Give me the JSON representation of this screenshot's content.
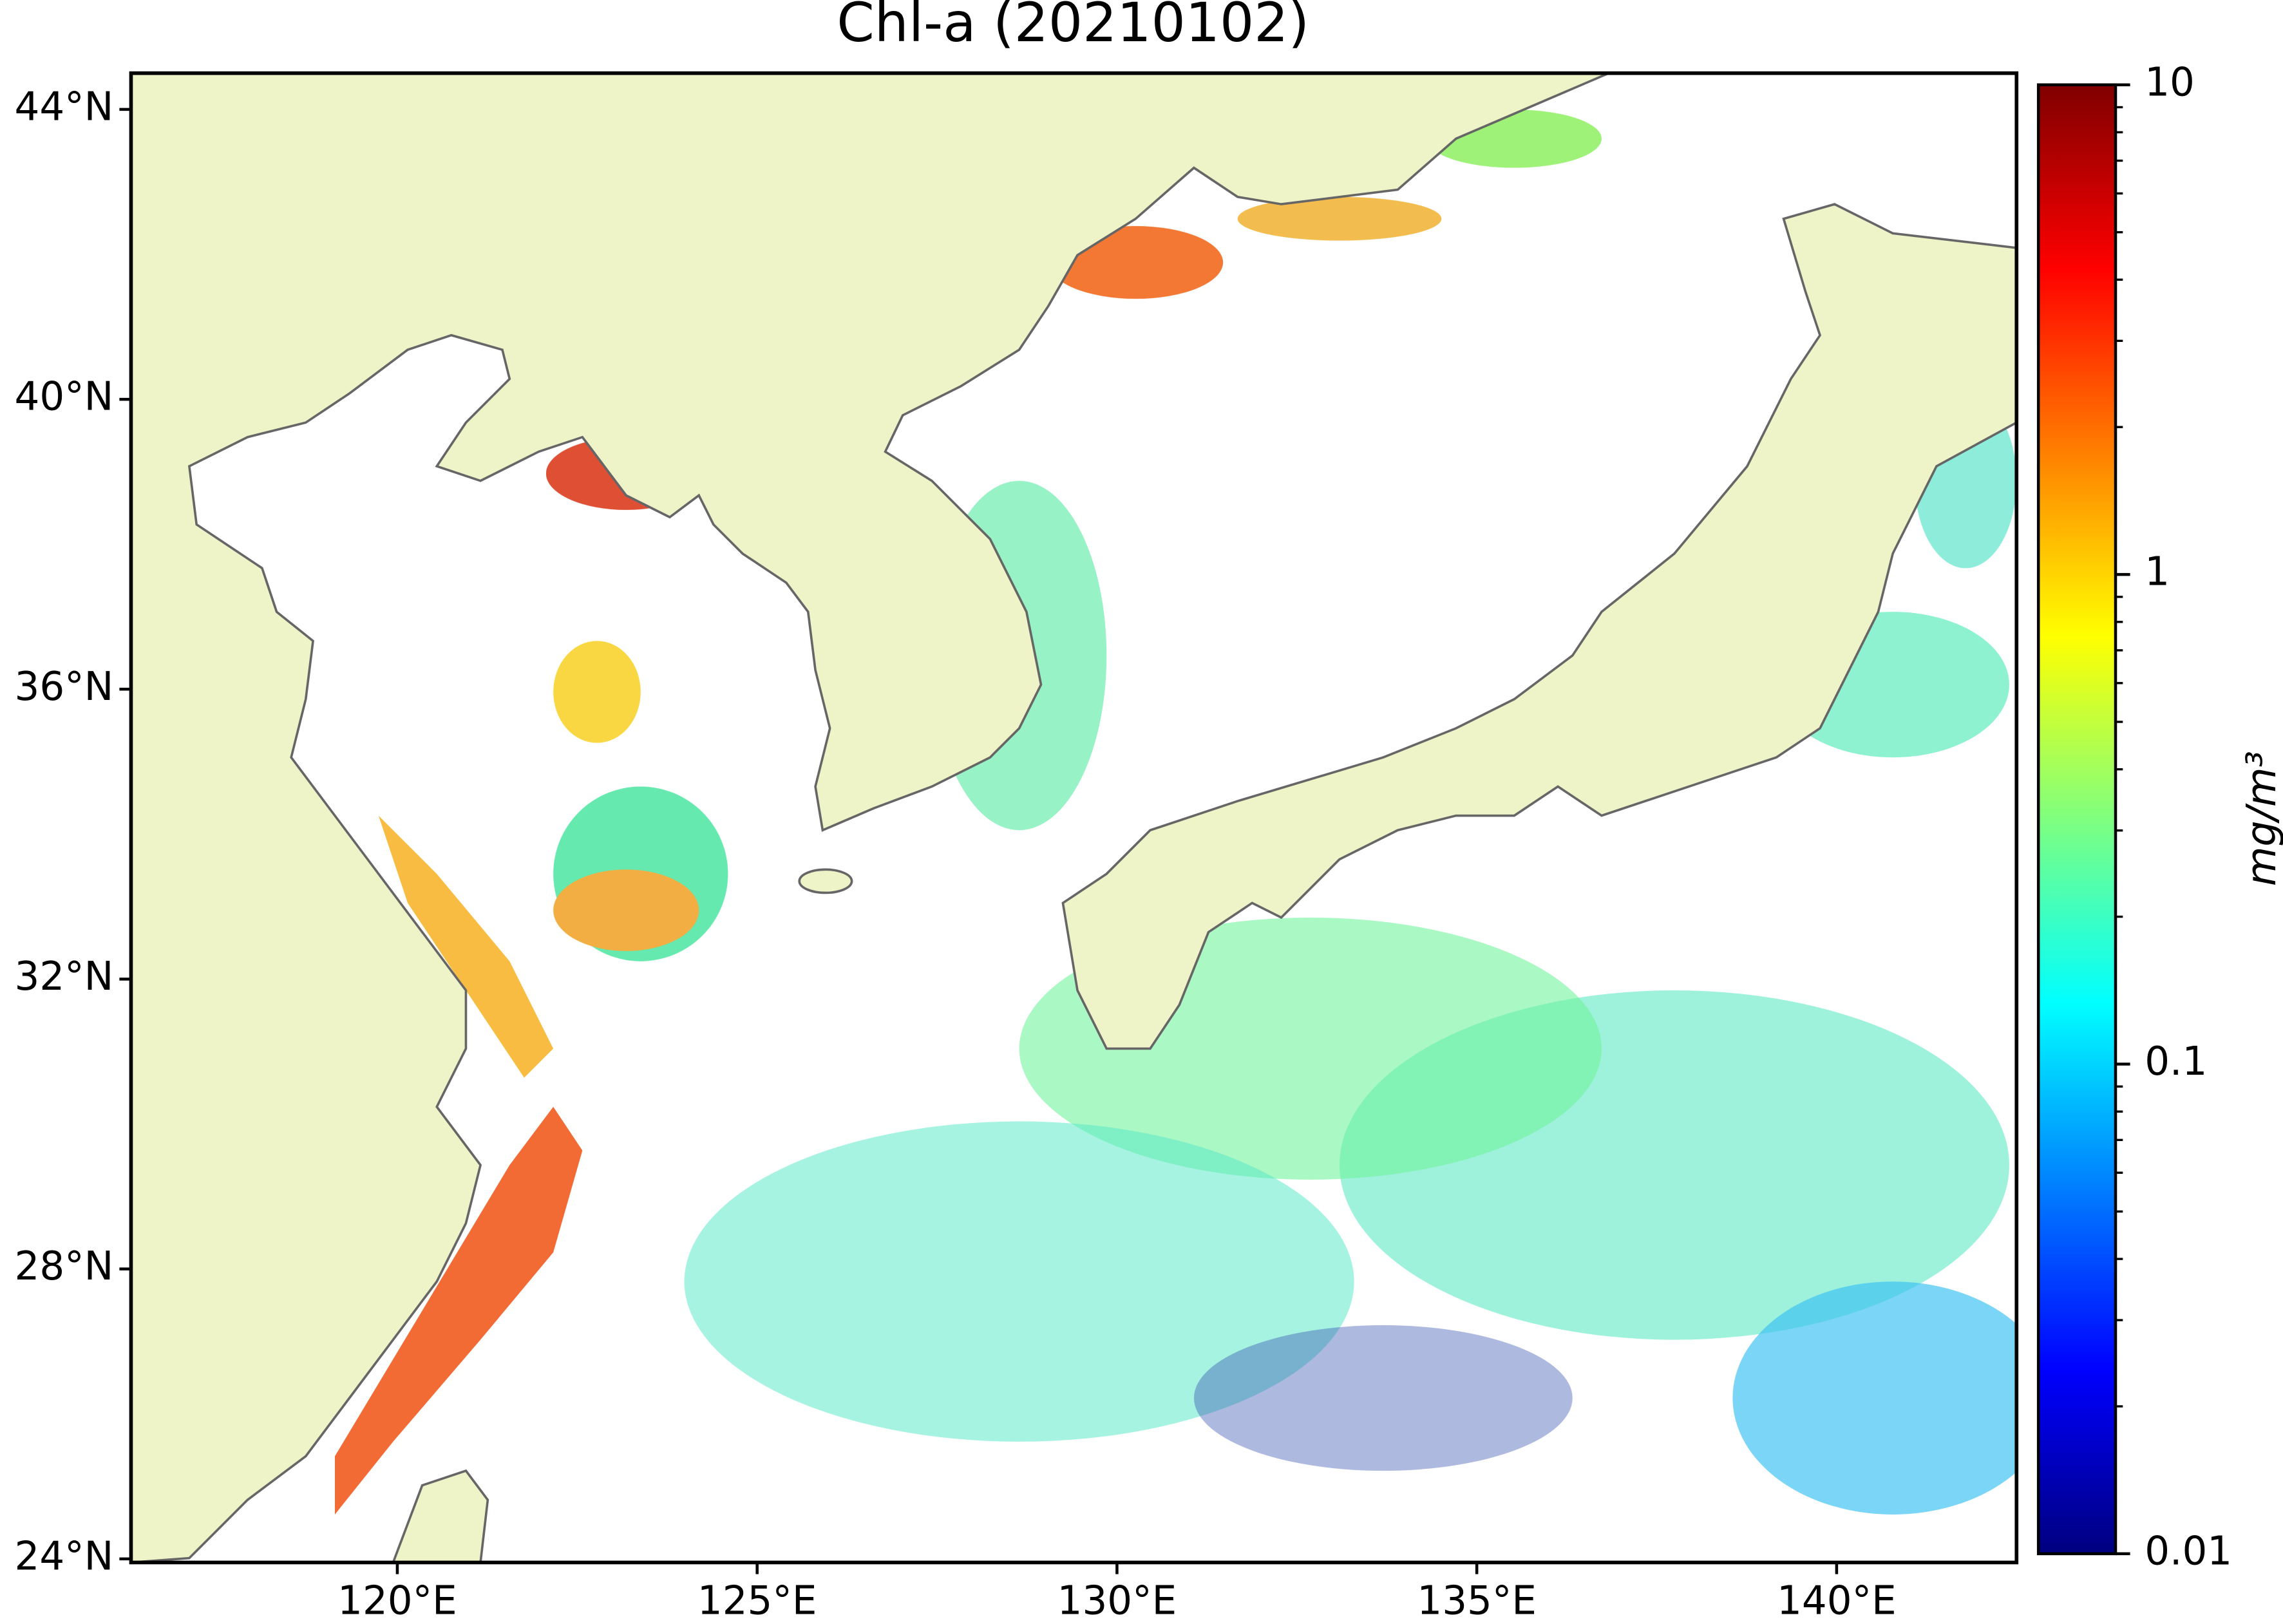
{
  "chart_data": {
    "type": "map",
    "title": "Chl-a (20210102)",
    "xlim": [
      116.3,
      142.5
    ],
    "ylim": [
      23.95,
      44.5
    ],
    "xticks": [
      {
        "value": 120,
        "label": "120°E"
      },
      {
        "value": 125,
        "label": "125°E"
      },
      {
        "value": 130,
        "label": "130°E"
      },
      {
        "value": 135,
        "label": "135°E"
      },
      {
        "value": 140,
        "label": "140°E"
      }
    ],
    "yticks": [
      {
        "value": 24,
        "label": "24°N"
      },
      {
        "value": 28,
        "label": "28°N"
      },
      {
        "value": 32,
        "label": "32°N"
      },
      {
        "value": 36,
        "label": "36°N"
      },
      {
        "value": 40,
        "label": "40°N"
      },
      {
        "value": 44,
        "label": "44°N"
      }
    ],
    "colorbar": {
      "label": "mg/m³",
      "colormap": "jet",
      "log_scale": true,
      "lim": [
        0.01,
        10
      ],
      "ticks": [
        0.01,
        0.1,
        1,
        10
      ]
    }
  }
}
